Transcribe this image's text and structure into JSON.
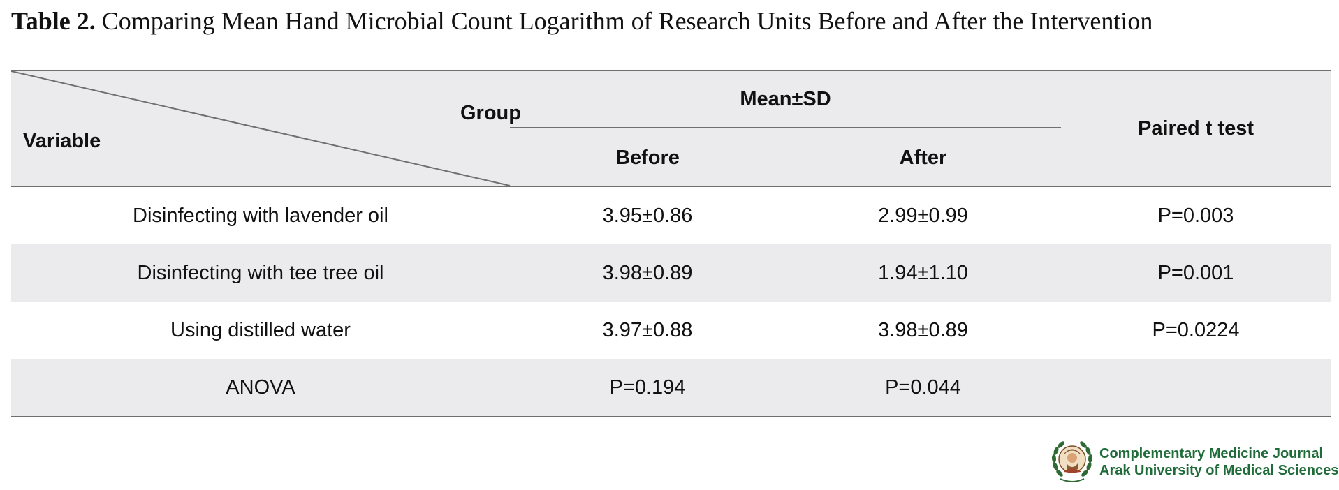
{
  "table": {
    "label": "Table 2.",
    "caption": "Comparing Mean Hand Microbial Count Logarithm of Research Units Before and After the Intervention",
    "header": {
      "variable": "Variable",
      "group": "Group",
      "mean_sd": "Mean±SD",
      "before": "Before",
      "after": "After",
      "paired": "Paired t test"
    },
    "rows": [
      {
        "variable": "Disinfecting with lavender oil",
        "before": "3.95±0.86",
        "after": "2.99±0.99",
        "paired": "P=0.003"
      },
      {
        "variable": "Disinfecting with tee tree oil",
        "before": "3.98±0.89",
        "after": "1.94±1.10",
        "paired": "P=0.001"
      },
      {
        "variable": "Using distilled water",
        "before": "3.97±0.88",
        "after": "3.98±0.89",
        "paired": "P=0.0224"
      },
      {
        "variable": "ANOVA",
        "before": "P=0.194",
        "after": "P=0.044",
        "paired": ""
      }
    ]
  },
  "logo": {
    "line1": "Complementary Medicine Journal",
    "line2": "Arak University of Medical Sciences",
    "emblem_icon": "laurel-portrait-emblem-icon",
    "text_color": "#1f6b3a"
  },
  "colors": {
    "header_band": "#ebebed",
    "stripe_band": "#ebebed",
    "rule": "#6f6f6f"
  }
}
